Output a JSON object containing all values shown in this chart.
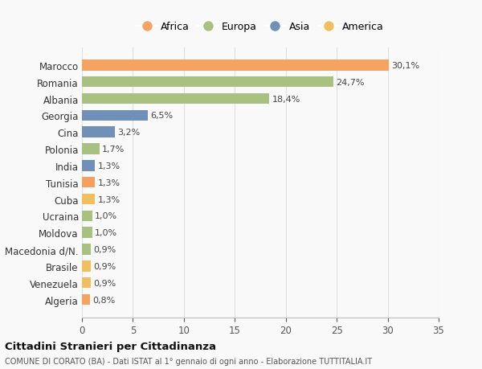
{
  "categories": [
    "Algeria",
    "Venezuela",
    "Brasile",
    "Macedonia d/N.",
    "Moldova",
    "Ucraina",
    "Cuba",
    "Tunisia",
    "India",
    "Polonia",
    "Cina",
    "Georgia",
    "Albania",
    "Romania",
    "Marocco"
  ],
  "values": [
    0.8,
    0.9,
    0.9,
    0.9,
    1.0,
    1.0,
    1.3,
    1.3,
    1.3,
    1.7,
    3.2,
    6.5,
    18.4,
    24.7,
    30.1
  ],
  "labels": [
    "0,8%",
    "0,9%",
    "0,9%",
    "0,9%",
    "1,0%",
    "1,0%",
    "1,3%",
    "1,3%",
    "1,3%",
    "1,7%",
    "3,2%",
    "6,5%",
    "18,4%",
    "24,7%",
    "30,1%"
  ],
  "colors": [
    "#F4A460",
    "#F0C060",
    "#F0C060",
    "#A8C080",
    "#A8C080",
    "#A8C080",
    "#F0C060",
    "#F4A060",
    "#7090B8",
    "#A8C080",
    "#7090B8",
    "#7090B8",
    "#A8C080",
    "#A8C080",
    "#F4A460"
  ],
  "legend_labels": [
    "Africa",
    "Europa",
    "Asia",
    "America"
  ],
  "legend_colors": [
    "#F4A460",
    "#A8C080",
    "#7090B8",
    "#F0C060"
  ],
  "title": "Cittadini Stranieri per Cittadinanza",
  "subtitle": "COMUNE DI CORATO (BA) - Dati ISTAT al 1° gennaio di ogni anno - Elaborazione TUTTITALIA.IT",
  "xlim": [
    0,
    35
  ],
  "xticks": [
    0,
    5,
    10,
    15,
    20,
    25,
    30,
    35
  ],
  "bg_color": "#f9f9f9",
  "bar_height": 0.65,
  "grid_color": "#e0e0e0"
}
